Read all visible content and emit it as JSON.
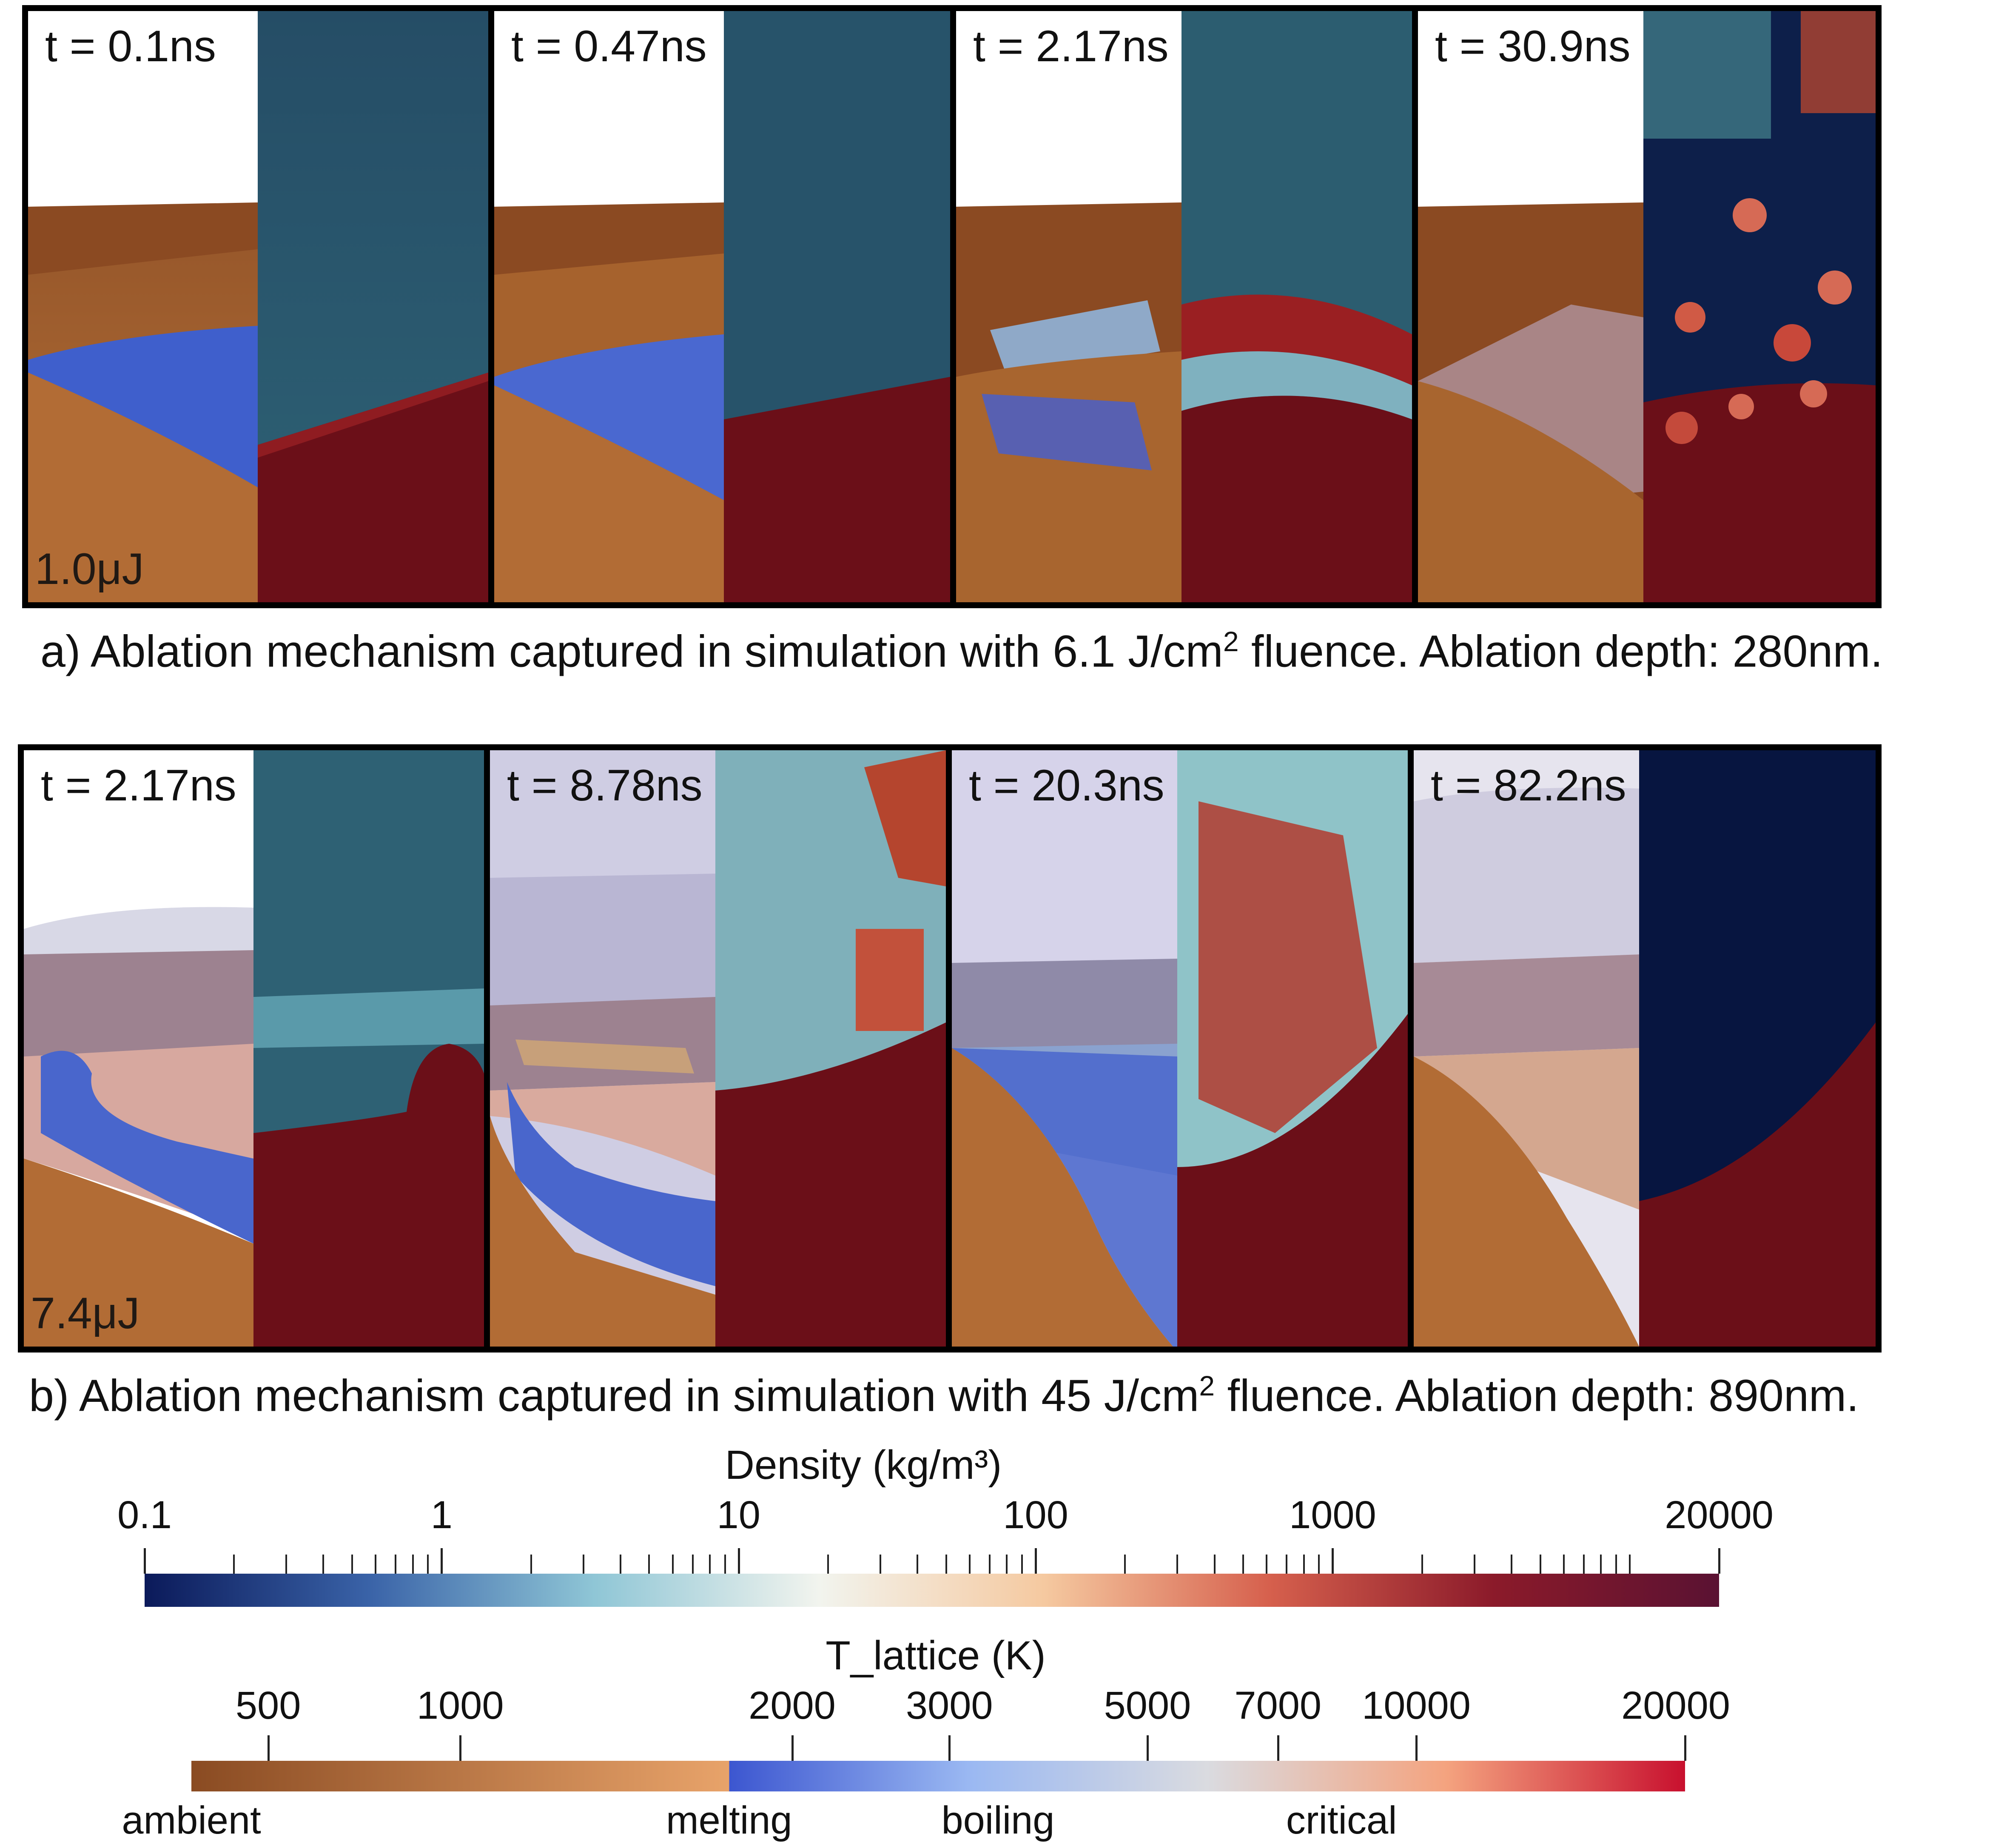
{
  "row_a": {
    "panels": [
      {
        "time": "t = 0.1ns",
        "energy": "1.0μJ"
      },
      {
        "time": "t = 0.47ns"
      },
      {
        "time": "t = 2.17ns"
      },
      {
        "time": "t = 30.9ns"
      }
    ],
    "caption_pre": "a) Ablation mechanism captured in simulation with 6.1 J/cm",
    "caption_sup": "2",
    "caption_post": " fluence. Ablation depth: 280nm."
  },
  "row_b": {
    "panels": [
      {
        "time": "t = 2.17ns",
        "energy": "7.4μJ"
      },
      {
        "time": "t = 8.78ns"
      },
      {
        "time": "t = 20.3ns"
      },
      {
        "time": "t = 82.2ns"
      }
    ],
    "caption_pre": "b) Ablation mechanism captured in simulation with 45 J/cm",
    "caption_sup": "2",
    "caption_post": " fluence. Ablation depth: 890nm."
  },
  "density_bar": {
    "title": "Density (kg/m³)",
    "scale": "log",
    "range": [
      0.1,
      20000
    ],
    "tick_labels": [
      {
        "value": 0.1,
        "label": "0.1"
      },
      {
        "value": 1,
        "label": "1"
      },
      {
        "value": 10,
        "label": "10"
      },
      {
        "value": 100,
        "label": "100"
      },
      {
        "value": 1000,
        "label": "1000"
      },
      {
        "value": 20000,
        "label": "20000"
      }
    ],
    "colors": [
      "#0b1a5a",
      "#3a63a8",
      "#8fc6d6",
      "#f2f4ee",
      "#f5c9a0",
      "#d6604d",
      "#8b1a2a",
      "#5a1232"
    ]
  },
  "temperature_bar": {
    "title": "T_lattice (K)",
    "tick_labels": [
      {
        "value": 500,
        "label": "500"
      },
      {
        "value": 1000,
        "label": "1000"
      },
      {
        "value": 2000,
        "label": "2000"
      },
      {
        "value": 3000,
        "label": "3000"
      },
      {
        "value": 5000,
        "label": "5000"
      },
      {
        "value": 7000,
        "label": "7000"
      },
      {
        "value": 10000,
        "label": "10000"
      },
      {
        "value": 20000,
        "label": "20000"
      }
    ],
    "phase_labels": [
      "ambient",
      "melting",
      "boiling",
      "critical"
    ],
    "colors": {
      "ambient": "#8a4b22",
      "melt_lo": "#e8a36a",
      "boil_lo": "#3c56d0",
      "boil_hi": "#9ab8f2",
      "mid": "#dadbe0",
      "crit_hi": "#f4a37f",
      "max": "#c8102e"
    }
  }
}
